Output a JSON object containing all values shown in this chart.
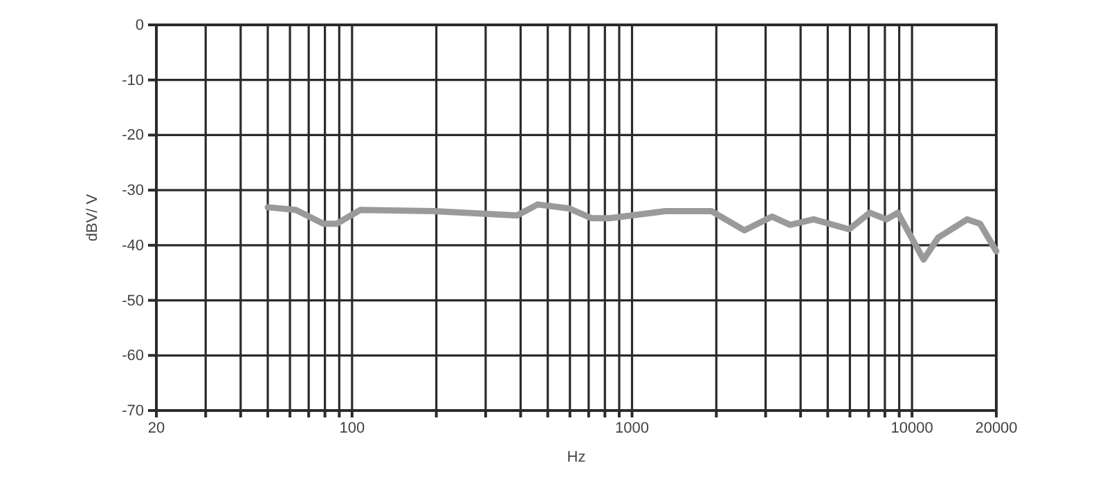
{
  "chart_data": {
    "type": "line",
    "xlabel": "Hz",
    "ylabel": "dBV/ V",
    "log": "x",
    "grid": true,
    "marker": "none",
    "line_style": "solid",
    "xlim": [
      20,
      20000
    ],
    "ylim": [
      -70,
      0
    ],
    "xticks": [
      20,
      {
        "value": 30,
        "label": null
      },
      {
        "value": 40,
        "label": null
      },
      {
        "value": 50,
        "label": null
      },
      {
        "value": 60,
        "label": null
      },
      {
        "value": 70,
        "label": null
      },
      {
        "value": 80,
        "label": null
      },
      {
        "value": 90,
        "label": null
      },
      100,
      {
        "value": 200,
        "label": null
      },
      {
        "value": 300,
        "label": null
      },
      {
        "value": 400,
        "label": null
      },
      {
        "value": 500,
        "label": null
      },
      {
        "value": 600,
        "label": null
      },
      {
        "value": 700,
        "label": null
      },
      {
        "value": 800,
        "label": null
      },
      {
        "value": 900,
        "label": null
      },
      1000,
      {
        "value": 2000,
        "label": null
      },
      {
        "value": 3000,
        "label": null
      },
      {
        "value": 4000,
        "label": null
      },
      {
        "value": 5000,
        "label": null
      },
      {
        "value": 6000,
        "label": null
      },
      {
        "value": 7000,
        "label": null
      },
      {
        "value": 8000,
        "label": null
      },
      {
        "value": 9000,
        "label": null
      },
      10000,
      20000
    ],
    "yticks": [
      0,
      -10,
      -20,
      -30,
      -40,
      -50,
      -60,
      -70
    ],
    "series": [
      {
        "color": "#9a9a9a",
        "x": [
          50,
          63,
          79,
          88,
          107,
          196,
          388,
          460,
          594,
          718,
          832,
          1316,
          1920,
          2520,
          3160,
          3670,
          4450,
          5960,
          7070,
          8100,
          8900,
          11000,
          12400,
          15750,
          17500,
          20000
        ],
        "values": [
          -33.1,
          -33.6,
          -36.1,
          -36.1,
          -33.6,
          -33.8,
          -34.6,
          -32.6,
          -33.3,
          -35.1,
          -35.1,
          -33.8,
          -33.8,
          -37.3,
          -34.8,
          -36.3,
          -35.3,
          -37.1,
          -34.1,
          -35.3,
          -34.1,
          -42.6,
          -38.6,
          -35.3,
          -36.1,
          -41.1
        ]
      }
    ]
  }
}
